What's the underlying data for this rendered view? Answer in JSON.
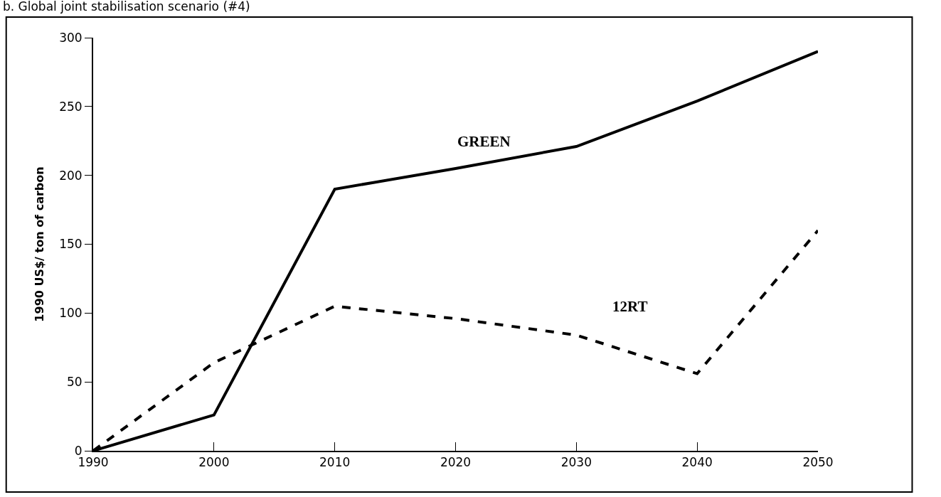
{
  "chart_data": {
    "type": "line",
    "title": "b. Global joint stabilisation scenario (#4)",
    "ylabel": "1990 US$/ ton of carbon",
    "x": [
      1990,
      2000,
      2010,
      2020,
      2030,
      2040,
      2050
    ],
    "series": [
      {
        "name": "GREEN",
        "color": "#000000",
        "line_style": "solid",
        "values": [
          0,
          26,
          190,
          205,
          221,
          254,
          290
        ]
      },
      {
        "name": "12RT",
        "color": "#000000",
        "line_style": "dashed",
        "values": [
          0,
          64,
          105,
          96,
          84,
          56,
          160
        ]
      }
    ],
    "xlim": [
      1990,
      2050
    ],
    "xticks": [
      1990,
      2000,
      2010,
      2020,
      2030,
      2040,
      2050
    ],
    "ylim": [
      0,
      300
    ],
    "yticks": [
      0,
      50,
      100,
      150,
      200,
      250,
      300
    ],
    "grid": false,
    "legend": false,
    "marker": "none"
  }
}
